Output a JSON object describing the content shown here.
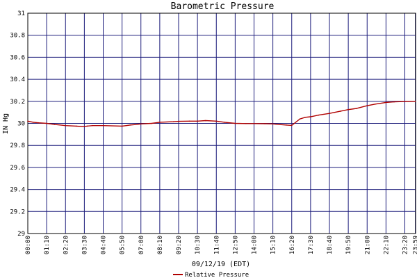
{
  "chart_data": {
    "type": "line",
    "title": "Barometric Pressure",
    "xlabel": "09/12/19 (EDT)",
    "ylabel": "IN Hg",
    "ylim": [
      29,
      31
    ],
    "yticks": [
      "29",
      "29.2",
      "29.4",
      "29.6",
      "29.8",
      "30",
      "30.2",
      "30.4",
      "30.6",
      "30.8",
      "31"
    ],
    "xticks": [
      "00:00",
      "01:10",
      "02:20",
      "03:30",
      "04:40",
      "05:50",
      "07:00",
      "08:10",
      "09:20",
      "10:30",
      "11:40",
      "12:50",
      "14:00",
      "15:10",
      "16:20",
      "17:30",
      "18:40",
      "19:50",
      "21:00",
      "22:10",
      "23:20",
      "23:59"
    ],
    "grid": true,
    "legend_position": "bottom-center",
    "series": [
      {
        "name": "Relative Pressure",
        "color": "#b00000",
        "x": [
          "00:00",
          "00:20",
          "00:40",
          "01:10",
          "01:40",
          "02:20",
          "03:00",
          "03:30",
          "03:40",
          "04:00",
          "04:40",
          "05:50",
          "06:20",
          "07:00",
          "07:40",
          "08:10",
          "09:00",
          "09:20",
          "10:00",
          "10:30",
          "11:00",
          "11:40",
          "12:10",
          "12:50",
          "13:30",
          "14:00",
          "14:40",
          "15:10",
          "16:00",
          "16:20",
          "16:50",
          "17:10",
          "17:30",
          "18:00",
          "18:40",
          "19:20",
          "19:50",
          "20:20",
          "21:00",
          "21:30",
          "22:10",
          "22:40",
          "23:20",
          "23:59"
        ],
        "values": [
          30.02,
          30.01,
          30.005,
          30.0,
          29.99,
          29.98,
          29.975,
          29.97,
          29.975,
          29.98,
          29.98,
          29.975,
          29.985,
          29.995,
          30.0,
          30.01,
          30.015,
          30.018,
          30.02,
          30.02,
          30.025,
          30.02,
          30.01,
          30.0,
          29.998,
          29.998,
          29.997,
          29.995,
          29.985,
          29.982,
          30.04,
          30.055,
          30.06,
          30.075,
          30.09,
          30.11,
          30.125,
          30.135,
          30.16,
          30.175,
          30.19,
          30.195,
          30.198,
          30.2
        ]
      }
    ]
  }
}
